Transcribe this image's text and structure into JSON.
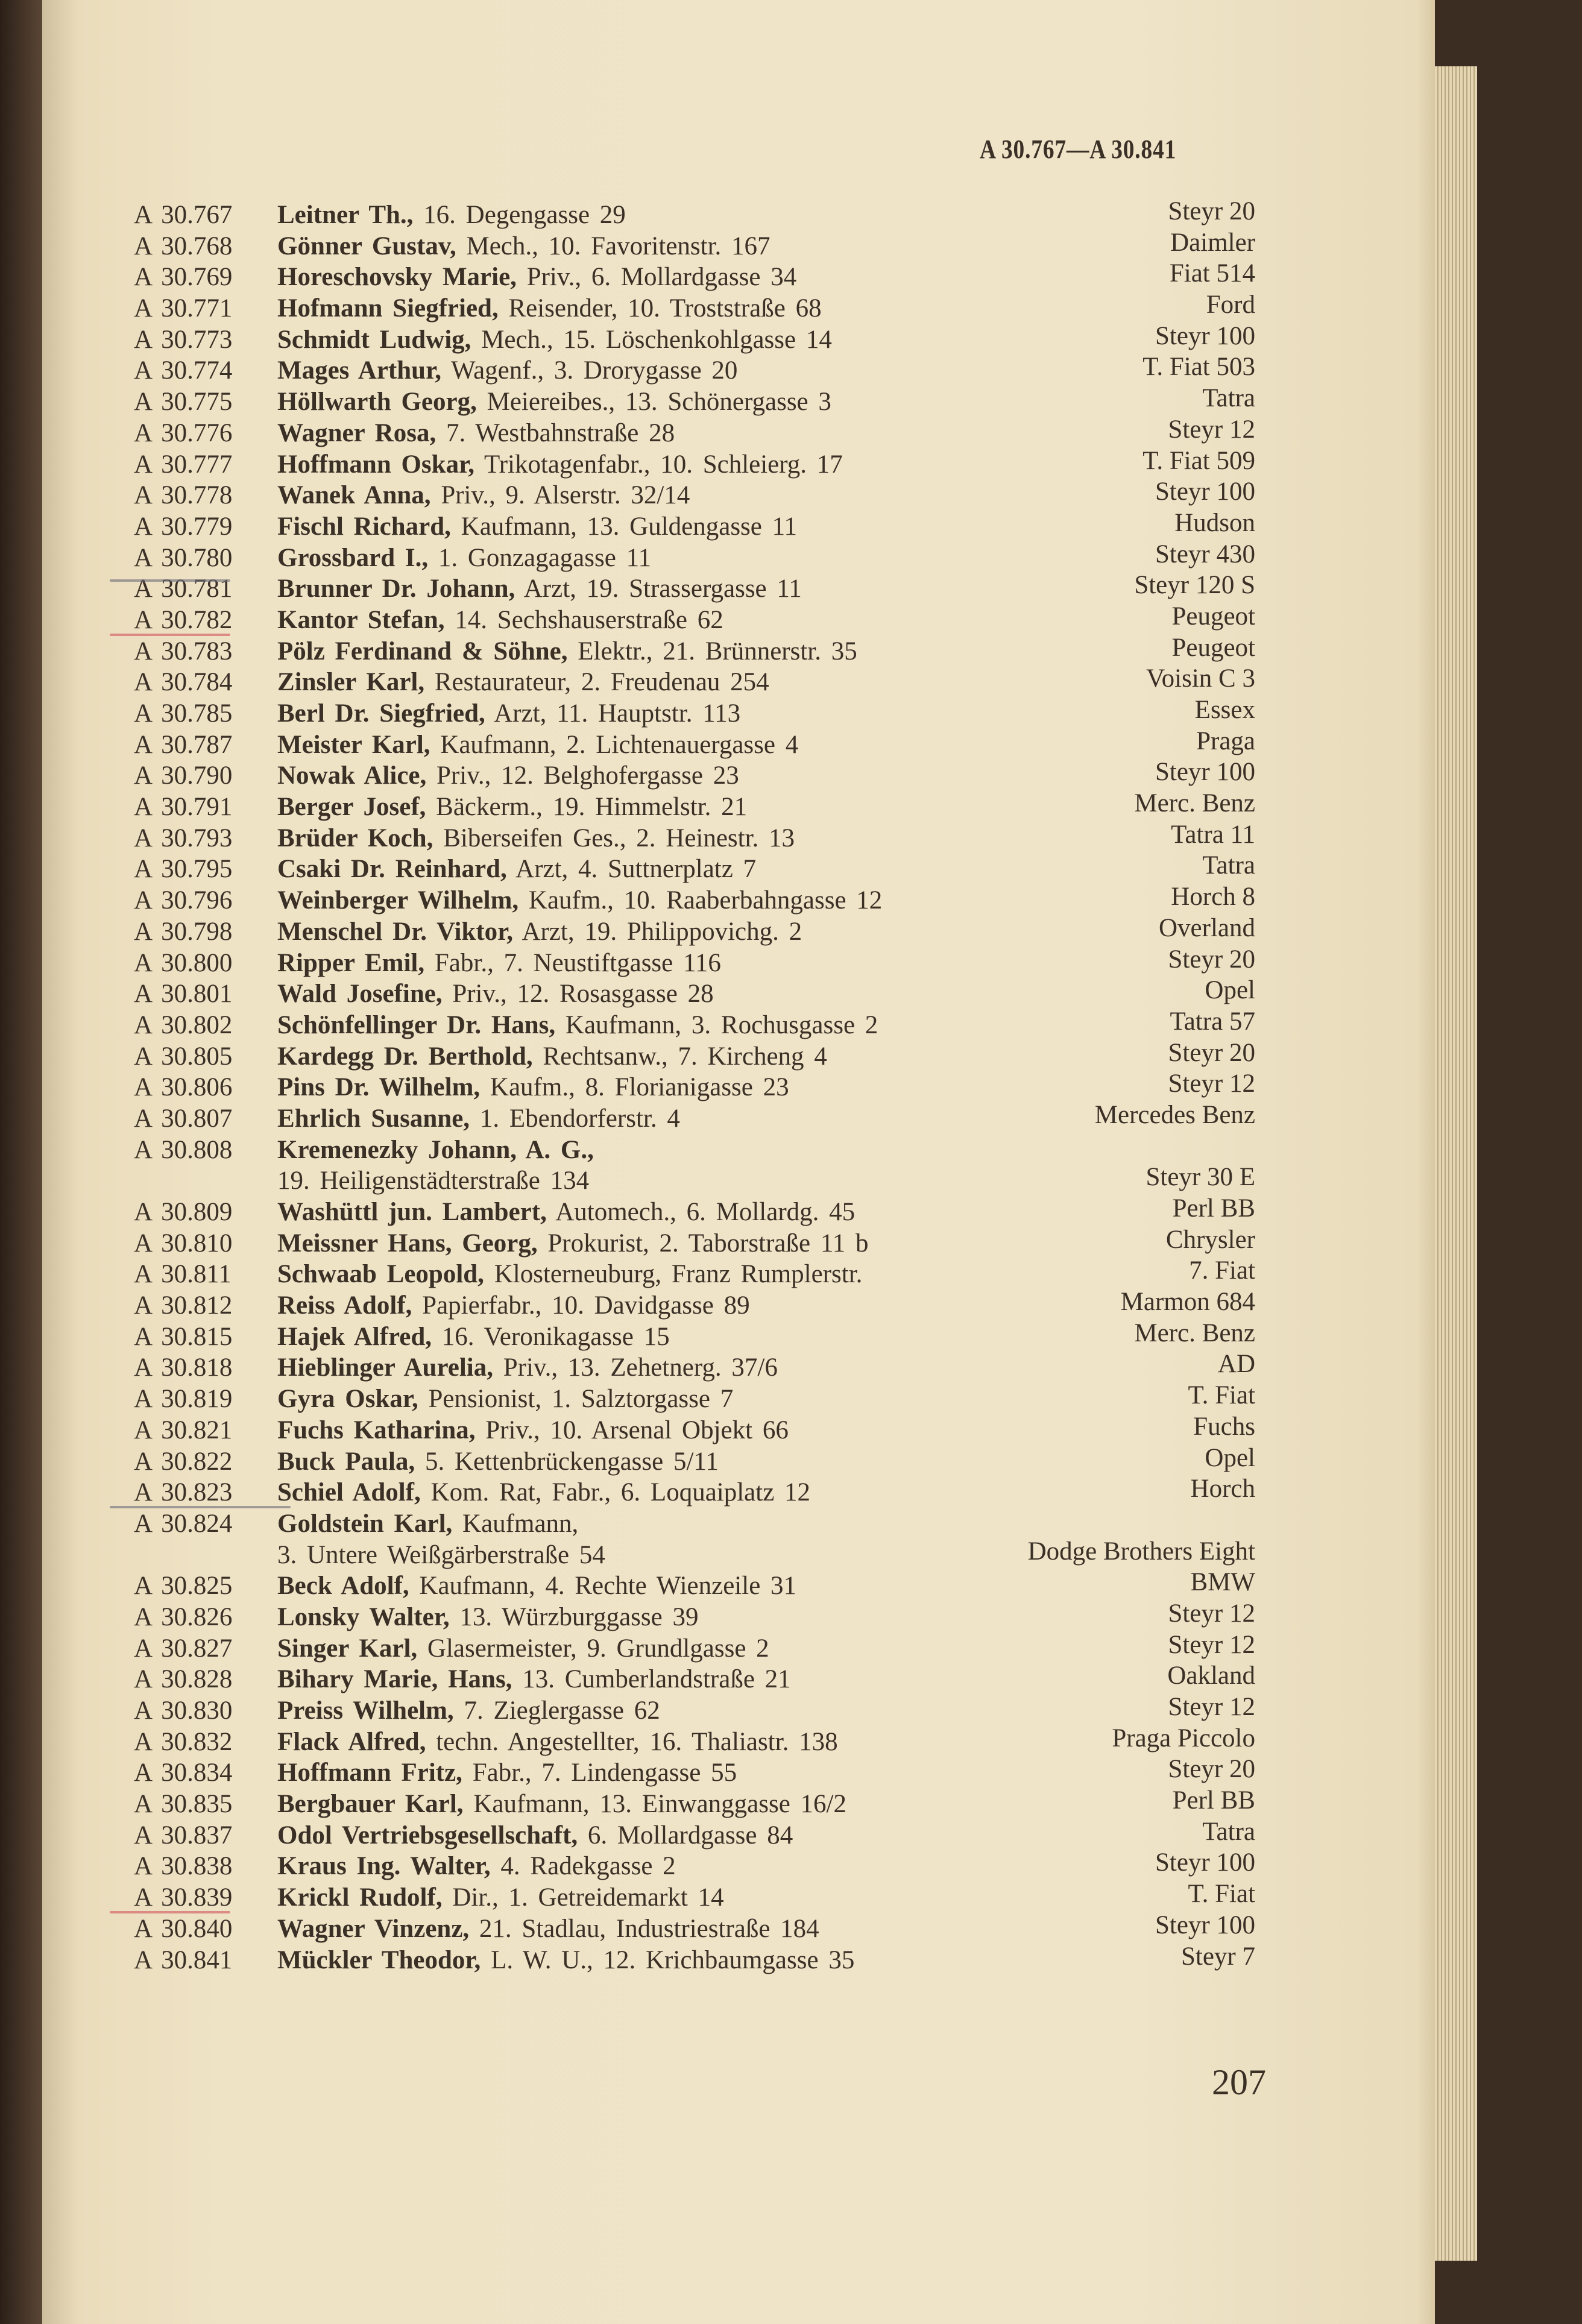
{
  "header": {
    "range": "A 30.767—A 30.841"
  },
  "page_number": "207",
  "colors": {
    "paper": "#efe4c8",
    "ink": "#3a3026",
    "pencil_grey": "#6b6b78",
    "pencil_red": "#d0505a"
  },
  "entries": [
    {
      "prefix": "A",
      "number": "30.767",
      "name": "Leitner Th.,",
      "rest": "16. Degengasse 29",
      "car": "Steyr 20"
    },
    {
      "prefix": "A",
      "number": "30.768",
      "name": "Gönner Gustav,",
      "rest": "Mech., 10. Favoritenstr. 167",
      "car": "Daimler"
    },
    {
      "prefix": "A",
      "number": "30.769",
      "name": "Horeschovsky Marie,",
      "rest": "Priv., 6. Mollardgasse 34",
      "car": "Fiat 514"
    },
    {
      "prefix": "A",
      "number": "30.771",
      "name": "Hofmann Siegfried,",
      "rest": "Reisender, 10. Troststraße 68",
      "car": "Ford"
    },
    {
      "prefix": "A",
      "number": "30.773",
      "name": "Schmidt Ludwig,",
      "rest": "Mech., 15. Löschenkohlgasse 14",
      "car": "Steyr 100"
    },
    {
      "prefix": "A",
      "number": "30.774",
      "name": "Mages Arthur,",
      "rest": "Wagenf., 3. Drorygasse 20",
      "car": "T. Fiat 503"
    },
    {
      "prefix": "A",
      "number": "30.775",
      "name": "Höllwarth Georg,",
      "rest": "Meiereibes., 13. Schönergasse 3",
      "car": "Tatra"
    },
    {
      "prefix": "A",
      "number": "30.776",
      "name": "Wagner Rosa,",
      "rest": "7. Westbahnstraße 28",
      "car": "Steyr 12"
    },
    {
      "prefix": "A",
      "number": "30.777",
      "name": "Hoffmann Oskar,",
      "rest": "Trikotagenfabr., 10. Schleierg. 17",
      "car": "T. Fiat 509"
    },
    {
      "prefix": "A",
      "number": "30.778",
      "name": "Wanek Anna,",
      "rest": "Priv., 9. Alserstr. 32/14",
      "car": "Steyr 100"
    },
    {
      "prefix": "A",
      "number": "30.779",
      "name": "Fischl Richard,",
      "rest": "Kaufmann, 13. Guldengasse 11",
      "car": "Hudson"
    },
    {
      "prefix": "A",
      "number": "30.780",
      "name": "Grossbard I.,",
      "rest": "1. Gonzagagasse 11",
      "car": "Steyr 430"
    },
    {
      "prefix": "A",
      "number": "30.781",
      "name": "Brunner Dr. Johann,",
      "rest": "Arzt, 19. Strassergasse 11",
      "car": "Steyr 120 S",
      "mark": "grey-strike"
    },
    {
      "prefix": "A",
      "number": "30.782",
      "name": "Kantor Stefan,",
      "rest": "14. Sechshauserstraße 62",
      "car": "Peugeot",
      "mark": "red-under"
    },
    {
      "prefix": "A",
      "number": "30.783",
      "name": "Pölz Ferdinand & Söhne,",
      "rest": "Elektr., 21. Brünnerstr. 35",
      "car": "Peugeot"
    },
    {
      "prefix": "A",
      "number": "30.784",
      "name": "Zinsler Karl,",
      "rest": "Restaurateur, 2. Freudenau 254",
      "car": "Voisin C 3"
    },
    {
      "prefix": "A",
      "number": "30.785",
      "name": "Berl Dr. Siegfried,",
      "rest": "Arzt, 11. Hauptstr. 113",
      "car": "Essex"
    },
    {
      "prefix": "A",
      "number": "30.787",
      "name": "Meister Karl,",
      "rest": "Kaufmann, 2. Lichtenauergasse 4",
      "car": "Praga"
    },
    {
      "prefix": "A",
      "number": "30.790",
      "name": "Nowak Alice,",
      "rest": "Priv., 12. Belghofergasse 23",
      "car": "Steyr 100"
    },
    {
      "prefix": "A",
      "number": "30.791",
      "name": "Berger Josef,",
      "rest": "Bäckerm., 19. Himmelstr. 21",
      "car": "Merc. Benz"
    },
    {
      "prefix": "A",
      "number": "30.793",
      "name": "Brüder Koch,",
      "rest": "Biberseifen Ges., 2. Heinestr. 13",
      "car": "Tatra 11"
    },
    {
      "prefix": "A",
      "number": "30.795",
      "name": "Csaki Dr. Reinhard,",
      "rest": "Arzt, 4. Suttnerplatz 7",
      "car": "Tatra"
    },
    {
      "prefix": "A",
      "number": "30.796",
      "name": "Weinberger Wilhelm,",
      "rest": "Kaufm., 10. Raaberbahngasse 12",
      "car": "Horch 8"
    },
    {
      "prefix": "A",
      "number": "30.798",
      "name": "Menschel Dr. Viktor,",
      "rest": "Arzt, 19. Philippovichg. 2",
      "car": "Overland"
    },
    {
      "prefix": "A",
      "number": "30.800",
      "name": "Ripper Emil,",
      "rest": "Fabr., 7. Neustiftgasse 116",
      "car": "Steyr 20"
    },
    {
      "prefix": "A",
      "number": "30.801",
      "name": "Wald Josefine,",
      "rest": "Priv., 12. Rosasgasse 28",
      "car": "Opel"
    },
    {
      "prefix": "A",
      "number": "30.802",
      "name": "Schönfellinger Dr. Hans,",
      "rest": "Kaufmann, 3. Rochusgasse 2",
      "car": "Tatra 57"
    },
    {
      "prefix": "A",
      "number": "30.805",
      "name": "Kardegg Dr. Berthold,",
      "rest": "Rechtsanw., 7. Kircheng 4",
      "car": "Steyr 20"
    },
    {
      "prefix": "A",
      "number": "30.806",
      "name": "Pins Dr. Wilhelm,",
      "rest": "Kaufm., 8. Florianigasse 23",
      "car": "Steyr 12"
    },
    {
      "prefix": "A",
      "number": "30.807",
      "name": "Ehrlich Susanne,",
      "rest": "1. Ebendorferstr. 4",
      "car": "Mercedes Benz"
    },
    {
      "prefix": "A",
      "number": "30.808",
      "name": "Kremenezky Johann, A. G.,",
      "rest": "",
      "address2": "19. Heiligenstädterstraße 134",
      "car": "Steyr 30 E"
    },
    {
      "prefix": "A",
      "number": "30.809",
      "name": "Washüttl jun. Lambert,",
      "rest": "Automech., 6. Mollardg. 45",
      "car": "Perl BB"
    },
    {
      "prefix": "A",
      "number": "30.810",
      "name": "Meissner Hans, Georg,",
      "rest": "Prokurist, 2. Taborstraße 11 b",
      "car": "Chrysler"
    },
    {
      "prefix": "A",
      "number": "30.811",
      "name": "Schwaab Leopold,",
      "rest": "Klosterneuburg, Franz Rumplerstr.",
      "car": "7. Fiat"
    },
    {
      "prefix": "A",
      "number": "30.812",
      "name": "Reiss Adolf,",
      "rest": "Papierfabr., 10. Davidgasse 89",
      "car": "Marmon 684"
    },
    {
      "prefix": "A",
      "number": "30.815",
      "name": "Hajek Alfred,",
      "rest": "16. Veronikagasse 15",
      "car": "Merc. Benz"
    },
    {
      "prefix": "A",
      "number": "30.818",
      "name": "Hieblinger Aurelia,",
      "rest": "Priv., 13. Zehetnerg. 37/6",
      "car": "AD"
    },
    {
      "prefix": "A",
      "number": "30.819",
      "name": "Gyra Oskar,",
      "rest": "Pensionist, 1. Salztorgasse 7",
      "car": "T. Fiat"
    },
    {
      "prefix": "A",
      "number": "30.821",
      "name": "Fuchs Katharina,",
      "rest": "Priv., 10. Arsenal Objekt 66",
      "car": "Fuchs"
    },
    {
      "prefix": "A",
      "number": "30.822",
      "name": "Buck Paula,",
      "rest": "5. Kettenbrückengasse 5/11",
      "car": "Opel"
    },
    {
      "prefix": "A",
      "number": "30.823",
      "name": "Schiel Adolf,",
      "rest": "Kom. Rat, Fabr., 6. Loquaiplatz 12",
      "car": "Horch",
      "mark": "grey-under"
    },
    {
      "prefix": "A",
      "number": "30.824",
      "name": "Goldstein Karl,",
      "rest": "Kaufmann,",
      "address2": "3. Untere Weißgärberstraße 54",
      "car": "Dodge Brothers Eight"
    },
    {
      "prefix": "A",
      "number": "30.825",
      "name": "Beck Adolf,",
      "rest": "Kaufmann, 4. Rechte Wienzeile 31",
      "car": "BMW"
    },
    {
      "prefix": "A",
      "number": "30.826",
      "name": "Lonsky Walter,",
      "rest": "13. Würzburggasse 39",
      "car": "Steyr 12"
    },
    {
      "prefix": "A",
      "number": "30.827",
      "name": "Singer Karl,",
      "rest": "Glasermeister, 9. Grundlgasse 2",
      "car": "Steyr 12"
    },
    {
      "prefix": "A",
      "number": "30.828",
      "name": "Bihary Marie, Hans,",
      "rest": "13. Cumberlandstraße 21",
      "car": "Oakland"
    },
    {
      "prefix": "A",
      "number": "30.830",
      "name": "Preiss Wilhelm,",
      "rest": "7. Zieglergasse 62",
      "car": "Steyr 12"
    },
    {
      "prefix": "A",
      "number": "30.832",
      "name": "Flack Alfred,",
      "rest": "techn. Angestellter, 16. Thaliastr. 138",
      "car": "Praga Piccolo"
    },
    {
      "prefix": "A",
      "number": "30.834",
      "name": "Hoffmann Fritz,",
      "rest": "Fabr., 7. Lindengasse 55",
      "car": "Steyr 20"
    },
    {
      "prefix": "A",
      "number": "30.835",
      "name": "Bergbauer Karl,",
      "rest": "Kaufmann, 13. Einwanggasse 16/2",
      "car": "Perl BB"
    },
    {
      "prefix": "A",
      "number": "30.837",
      "name": "Odol Vertriebsgesellschaft,",
      "rest": "6. Mollardgasse 84",
      "car": "Tatra"
    },
    {
      "prefix": "A",
      "number": "30.838",
      "name": "Kraus Ing. Walter,",
      "rest": "4. Radekgasse 2",
      "car": "Steyr 100"
    },
    {
      "prefix": "A",
      "number": "30.839",
      "name": "Krickl Rudolf,",
      "rest": "Dir., 1. Getreidemarkt 14",
      "car": "T. Fiat",
      "mark": "red-under"
    },
    {
      "prefix": "A",
      "number": "30.840",
      "name": "Wagner Vinzenz,",
      "rest": "21. Stadlau, Industriestraße 184",
      "car": "Steyr 100"
    },
    {
      "prefix": "A",
      "number": "30.841",
      "name": "Mückler Theodor,",
      "rest": "L. W. U., 12. Krichbaumgasse 35",
      "car": "Steyr 7"
    }
  ]
}
